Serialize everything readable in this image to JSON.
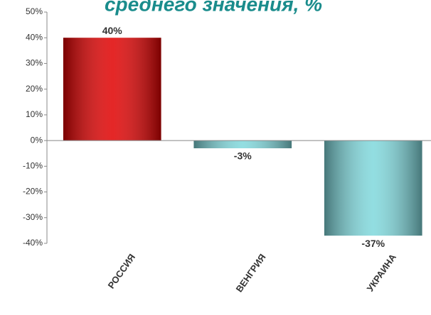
{
  "chart_data": {
    "type": "bar",
    "title": "среднего значения, %",
    "categories": [
      "РОССИЯ",
      "ВЕНГРИЯ",
      "УКРАИНА"
    ],
    "values": [
      40,
      -3,
      -37
    ],
    "value_labels": [
      "40%",
      "-3%",
      "-37%"
    ],
    "colors": [
      "#e00000",
      "#7fd8dc",
      "#7fd8dc"
    ],
    "ylim": [
      -40,
      50
    ],
    "yticks": [
      {
        "value": -40,
        "label": "-40%"
      },
      {
        "value": -30,
        "label": "-30%"
      },
      {
        "value": -20,
        "label": "-20%"
      },
      {
        "value": -10,
        "label": "-10%"
      },
      {
        "value": 0,
        "label": "0%"
      },
      {
        "value": 10,
        "label": "10%"
      },
      {
        "value": 20,
        "label": "20%"
      },
      {
        "value": 30,
        "label": "30%"
      },
      {
        "value": 40,
        "label": "40%"
      },
      {
        "value": 50,
        "label": "50%"
      }
    ]
  }
}
